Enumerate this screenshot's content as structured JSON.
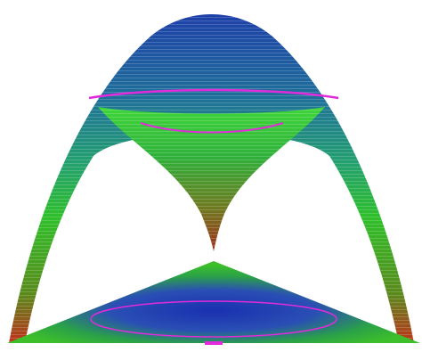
{
  "colors": {
    "background": "#ffffff",
    "top_blue": "#1d3fa8",
    "mid_teal": "#1f8a6e",
    "green": "#2fbf2a",
    "bright_green": "#3fd63a",
    "brown": "#7a5a18",
    "red_tip": "#c0301a",
    "magenta_contour": "#e02bd8"
  },
  "figure": {
    "parts": [
      "outer-dome-surface",
      "inner-funnel-surface",
      "base-triangle-projection",
      "contour-lines"
    ]
  }
}
